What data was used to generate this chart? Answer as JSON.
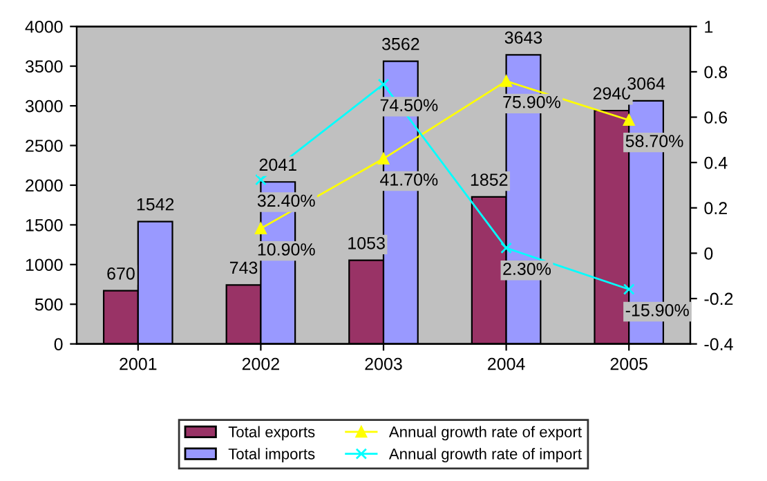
{
  "chart_data": {
    "type": "bar",
    "categories": [
      "2001",
      "2002",
      "2003",
      "2004",
      "2005"
    ],
    "series": [
      {
        "name": "Total exports",
        "color": "#993366",
        "values": [
          670,
          743,
          1053,
          1852,
          2940
        ],
        "value_labels": [
          "670",
          "743",
          "1053",
          "1852",
          "2940"
        ]
      },
      {
        "name": "Total imports",
        "color": "#9999ff",
        "values": [
          1542,
          2041,
          3562,
          3643,
          3064
        ],
        "value_labels": [
          "1542",
          "2041",
          "3562",
          "3643",
          "3064"
        ]
      },
      {
        "name": "Annual growth rate of export",
        "type": "line",
        "axis": "y2",
        "color": "#ffff00",
        "marker": "triangle",
        "values": [
          null,
          0.109,
          0.417,
          0.759,
          0.587
        ],
        "value_labels": [
          null,
          "10.90%",
          "41.70%",
          "75.90%",
          "58.70%"
        ]
      },
      {
        "name": "Annual growth rate of import",
        "type": "line",
        "axis": "y2",
        "color": "#00ffff",
        "marker": "cross",
        "values": [
          null,
          0.324,
          0.745,
          0.023,
          -0.159
        ],
        "value_labels": [
          null,
          "32.40%",
          "74.50%",
          "2.30%",
          "-15.90%"
        ]
      }
    ],
    "ylim": [
      0,
      4000
    ],
    "yticks": [
      0,
      500,
      1000,
      1500,
      2000,
      2500,
      3000,
      3500,
      4000
    ],
    "y2lim": [
      -0.4,
      1
    ],
    "y2ticks": [
      -0.4,
      -0.2,
      0,
      0.2,
      0.4,
      0.6,
      0.8,
      1
    ],
    "grid": false,
    "legend": "bottom"
  }
}
